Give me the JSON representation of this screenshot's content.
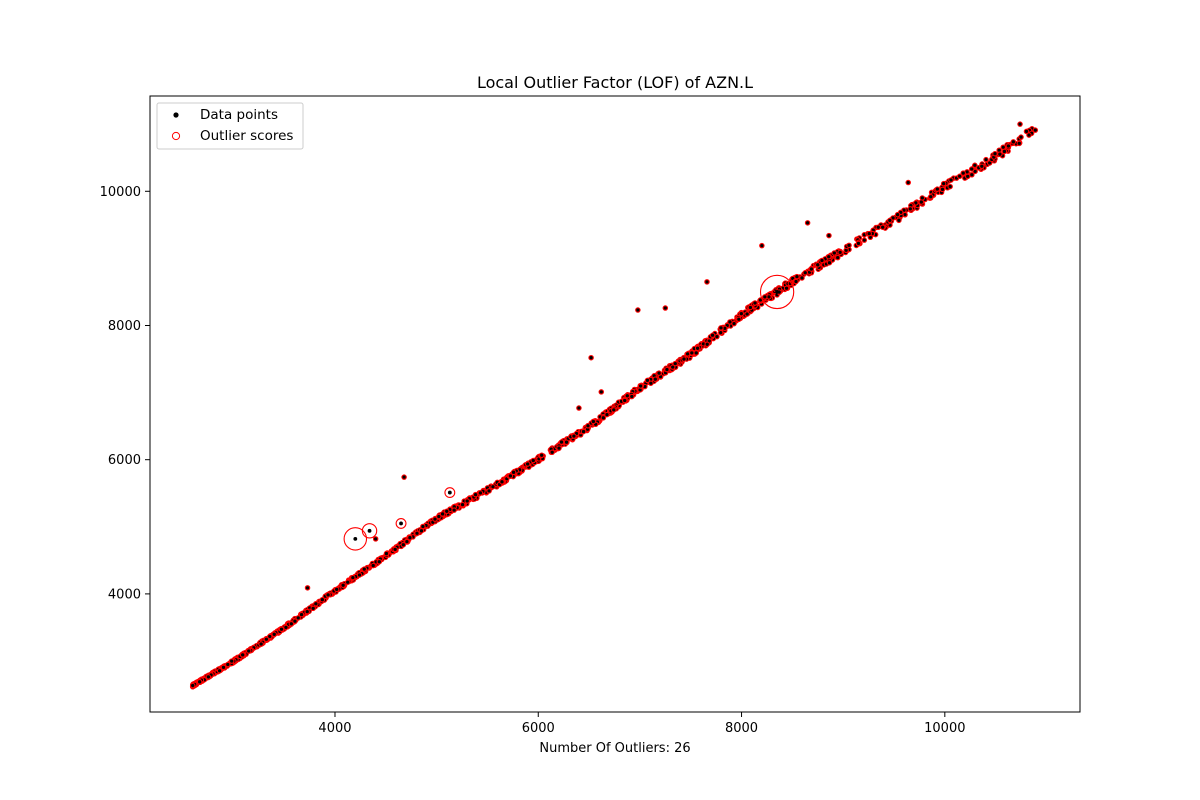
{
  "chart_data": {
    "type": "scatter",
    "title": "Local Outlier Factor (LOF) of AZN.L",
    "xlabel": "Number Of Outliers: 26",
    "ylabel": "",
    "xlim": [
      2180,
      11330
    ],
    "ylim": [
      2240,
      11420
    ],
    "xticks": [
      4000,
      6000,
      8000,
      10000
    ],
    "yticks": [
      4000,
      6000,
      8000,
      10000
    ],
    "grid": false,
    "legend": {
      "placement": "top-left",
      "entries": [
        {
          "label": "Data points",
          "marker": "filled-dot",
          "color": "#000000"
        },
        {
          "label": "Outlier scores",
          "marker": "open-circle",
          "color": "#ff0000"
        }
      ]
    },
    "colors": {
      "data_points": "#000000",
      "outlier_scores": "#ff0000"
    },
    "trend_segments": [
      [
        2600,
        2630
      ],
      [
        3000,
        2990
      ],
      [
        3500,
        3490
      ],
      [
        4000,
        4040
      ],
      [
        4500,
        4560
      ],
      [
        5000,
        5120
      ],
      [
        5500,
        5540
      ],
      [
        6000,
        6000
      ],
      [
        6500,
        6480
      ],
      [
        7000,
        7060
      ],
      [
        7500,
        7560
      ],
      [
        8000,
        8150
      ],
      [
        8500,
        8640
      ],
      [
        9000,
        9100
      ],
      [
        9500,
        9560
      ],
      [
        10000,
        10060
      ],
      [
        10500,
        10500
      ],
      [
        10900,
        10950
      ]
    ],
    "off_trend_points": [
      {
        "x": 4200,
        "y": 4820,
        "score": 1.0
      },
      {
        "x": 4340,
        "y": 4940,
        "score": 0.55
      },
      {
        "x": 4650,
        "y": 5050,
        "score": 0.3
      },
      {
        "x": 5130,
        "y": 5510,
        "score": 0.3
      },
      {
        "x": 4680,
        "y": 5740,
        "score": 0.0
      },
      {
        "x": 6520,
        "y": 7520,
        "score": 0.0
      },
      {
        "x": 6980,
        "y": 8230,
        "score": 0.0
      },
      {
        "x": 7250,
        "y": 8260,
        "score": 0.0
      },
      {
        "x": 7660,
        "y": 8650,
        "score": 0.0
      },
      {
        "x": 8200,
        "y": 9190,
        "score": 0.0
      },
      {
        "x": 8650,
        "y": 9530,
        "score": 0.0
      },
      {
        "x": 3730,
        "y": 4090,
        "score": 0.0
      },
      {
        "x": 4400,
        "y": 4820,
        "score": 0.0
      },
      {
        "x": 6400,
        "y": 6770,
        "score": 0.0
      },
      {
        "x": 6620,
        "y": 7010,
        "score": 0.0
      },
      {
        "x": 8860,
        "y": 9340,
        "score": 0.0
      },
      {
        "x": 9640,
        "y": 10130,
        "score": 0.0
      },
      {
        "x": 10740,
        "y": 11000,
        "score": 0.0
      }
    ],
    "large_outlier": {
      "x": 8350,
      "y": 8500,
      "score": 1.6
    }
  }
}
